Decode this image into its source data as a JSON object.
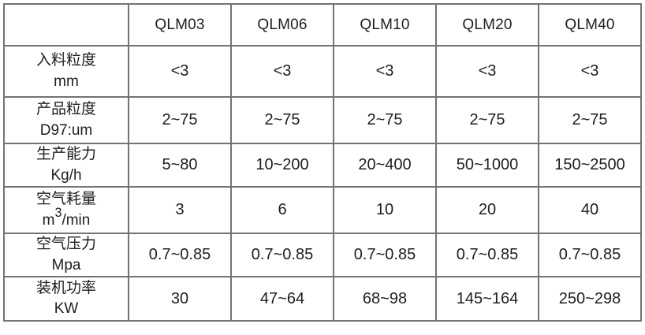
{
  "table": {
    "columns": [
      "",
      "QLM03",
      "QLM06",
      "QLM10",
      "QLM20",
      "QLM40"
    ],
    "rows": [
      {
        "name": "feed-particle-size",
        "label_lines": [
          "入料粒度",
          "mm"
        ],
        "values": [
          "<3",
          "<3",
          "<3",
          "<3",
          "<3"
        ]
      },
      {
        "name": "product-particle-size",
        "label_lines": [
          "产品粒度",
          "D97:um"
        ],
        "values": [
          "2~75",
          "2~75",
          "2~75",
          "2~75",
          "2~75"
        ]
      },
      {
        "name": "production-capacity",
        "label_lines": [
          "生产能力",
          "Kg/h"
        ],
        "values": [
          "5~80",
          "10~200",
          "20~400",
          "50~1000",
          "150~2500"
        ]
      },
      {
        "name": "air-consumption",
        "label_lines": [
          "空气耗量",
          "m³/min"
        ],
        "values": [
          "3",
          "6",
          "10",
          "20",
          "40"
        ]
      },
      {
        "name": "air-pressure",
        "label_lines": [
          "空气压力",
          "Mpa"
        ],
        "values": [
          "0.7~0.85",
          "0.7~0.85",
          "0.7~0.85",
          "0.7~0.85",
          "0.7~0.85"
        ]
      },
      {
        "name": "installed-power",
        "label_lines": [
          "装机功率",
          "KW"
        ],
        "values": [
          "30",
          "47~64",
          "68~98",
          "145~164",
          "250~298"
        ]
      }
    ]
  },
  "colors": {
    "border": "#737373",
    "text": "#1e1e1e",
    "background": "#ffffff"
  }
}
